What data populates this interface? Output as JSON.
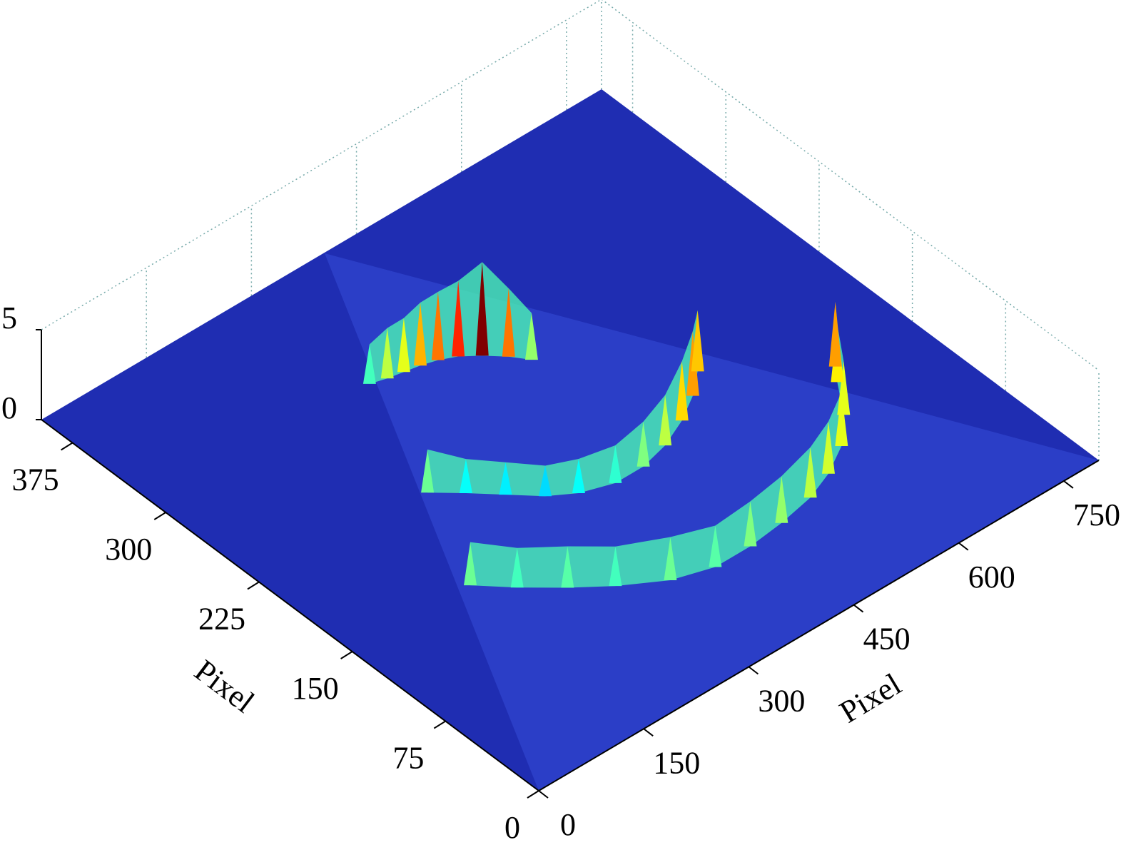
{
  "chart_data": {
    "type": "surface",
    "colormap": "jet",
    "base_color": "#1f2db2",
    "xlabel": "Pixel",
    "ylabel": "Pixel",
    "xlim": [
      0,
      800
    ],
    "ylim": [
      0,
      400
    ],
    "zlim": [
      0,
      5
    ],
    "xticks": [
      0,
      150,
      300,
      450,
      600,
      750
    ],
    "yticks": [
      0,
      75,
      150,
      225,
      300,
      375
    ],
    "zticks": [
      0,
      5
    ],
    "series": [
      {
        "x": [
          300,
          320,
          340,
          360,
          380,
          400,
          420,
          440,
          455
        ],
        "y": [
          305,
          302,
          300,
          298,
          295,
          290,
          282,
          272,
          262
        ],
        "z": [
          2.2,
          2.8,
          3.0,
          3.5,
          3.8,
          4.2,
          5.2,
          3.8,
          2.6
        ]
      },
      {
        "x": [
          230,
          260,
          290,
          320,
          350,
          390,
          430,
          470,
          510,
          545,
          575
        ],
        "y": [
          219,
          205,
          190,
          175,
          165,
          158,
          158,
          163,
          172,
          183,
          196
        ],
        "z": [
          2.4,
          1.9,
          1.8,
          1.7,
          1.9,
          2.1,
          2.5,
          2.8,
          3.3,
          3.6,
          3.4
        ]
      },
      {
        "x": [
          165,
          200,
          240,
          280,
          330,
          380,
          430,
          480,
          530,
          570,
          610,
          645,
          675,
          690
        ],
        "y": [
          148,
          130,
          112,
          96,
          80,
          72,
          72,
          75,
          80,
          88,
          100,
          118,
          140,
          150
        ],
        "z": [
          2.4,
          2.2,
          2.3,
          2.2,
          2.4,
          2.3,
          2.5,
          2.6,
          2.8,
          2.9,
          3.0,
          3.0,
          3.2,
          3.6
        ]
      }
    ]
  }
}
